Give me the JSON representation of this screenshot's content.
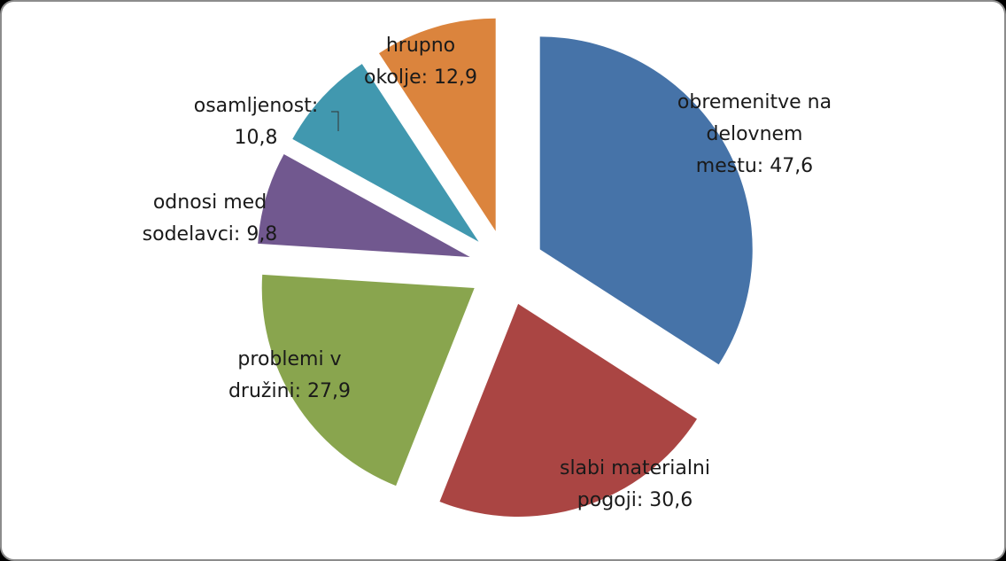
{
  "chart_data": {
    "type": "pie",
    "exploded": true,
    "title": "",
    "slices": [
      {
        "name": "obremenitve na delovnem mestu",
        "value": 47.6,
        "color": "#4673a8",
        "label_lines": [
          "obremenitve na",
          "delovnem",
          "mestu: 47,6"
        ]
      },
      {
        "name": "slabi materialni pogoji",
        "value": 30.6,
        "color": "#aa4543",
        "label_lines": [
          "slabi materialni",
          "pogoji: 30,6"
        ]
      },
      {
        "name": "problemi v družini",
        "value": 27.9,
        "color": "#89a54e",
        "label_lines": [
          "problemi v",
          "družini: 27,9"
        ]
      },
      {
        "name": "odnosi med sodelavci",
        "value": 9.8,
        "color": "#71588f",
        "label_lines": [
          "odnosi med",
          "sodelavci: 9,8"
        ]
      },
      {
        "name": "osamljenost",
        "value": 10.8,
        "color": "#4198af",
        "label_lines": [
          "osamljenost:",
          "10,8"
        ]
      },
      {
        "name": "hrupno okolje",
        "value": 12.9,
        "color": "#db843d",
        "label_lines": [
          "hrupno",
          "okolje: 12,9"
        ]
      }
    ]
  }
}
